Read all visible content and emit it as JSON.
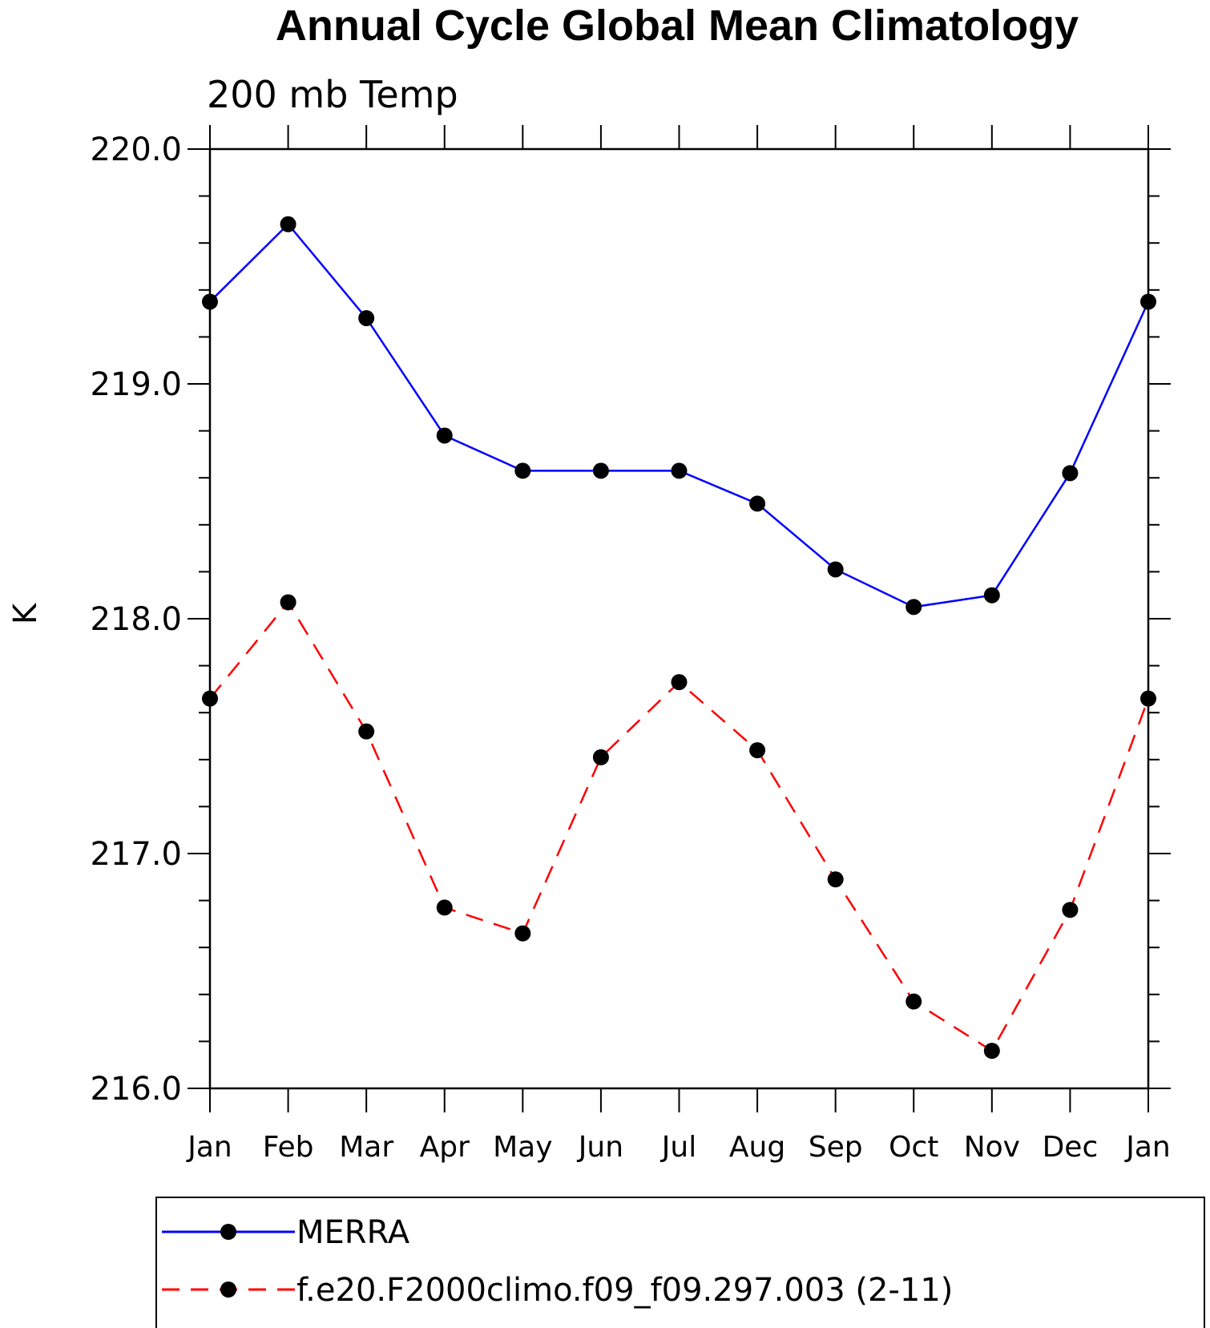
{
  "chart_data": {
    "type": "line",
    "title": "Annual Cycle Global Mean Climatology",
    "subtitle": "200 mb Temp",
    "ylabel": "K",
    "xlabel": "",
    "categories": [
      "Jan",
      "Feb",
      "Mar",
      "Apr",
      "May",
      "Jun",
      "Jul",
      "Aug",
      "Sep",
      "Oct",
      "Nov",
      "Dec",
      "Jan"
    ],
    "ylim": [
      216.0,
      220.0
    ],
    "yticks": [
      "216.0",
      "217.0",
      "218.0",
      "219.0",
      "220.0"
    ],
    "grid": false,
    "legend_position": "bottom",
    "series": [
      {
        "name": "MERRA",
        "color": "#0000ff",
        "dash": "solid",
        "marker": "filled-circle",
        "values": [
          219.35,
          219.68,
          219.28,
          218.78,
          218.63,
          218.63,
          218.63,
          218.49,
          218.21,
          218.05,
          218.1,
          218.62,
          219.35
        ]
      },
      {
        "name": "f.e20.F2000climo.f09_f09.297.003 (2-11)",
        "color": "#ff0000",
        "dash": "dashed",
        "marker": "filled-circle",
        "values": [
          217.66,
          218.07,
          217.52,
          216.77,
          216.66,
          217.41,
          217.73,
          217.44,
          216.89,
          216.37,
          216.16,
          216.76,
          217.66
        ]
      }
    ]
  }
}
